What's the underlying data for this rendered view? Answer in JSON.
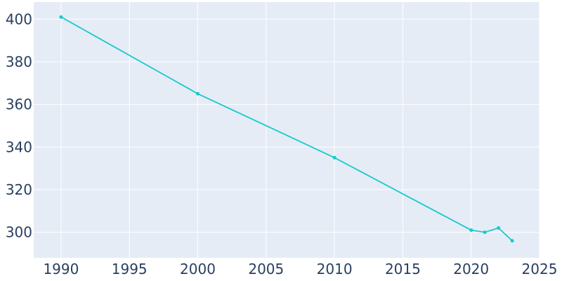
{
  "chart_data": {
    "type": "line",
    "title": "",
    "xlabel": "",
    "ylabel": "",
    "xlim": [
      1988,
      2025
    ],
    "ylim": [
      288,
      408
    ],
    "x_ticks": [
      1990,
      1995,
      2000,
      2005,
      2010,
      2015,
      2020,
      2025
    ],
    "y_ticks": [
      300,
      320,
      340,
      360,
      380,
      400
    ],
    "grid": true,
    "legend": "none",
    "series": [
      {
        "x": [
          1990,
          2000,
          2010,
          2020,
          2021,
          2022,
          2023
        ],
        "y": [
          401,
          365,
          335,
          301,
          300,
          302,
          296
        ]
      }
    ],
    "colors": {
      "line": "#17cacd",
      "plot_background": "#e5ecf6",
      "grid": "#ffffff",
      "tick_text": "#2a3f5f"
    }
  }
}
